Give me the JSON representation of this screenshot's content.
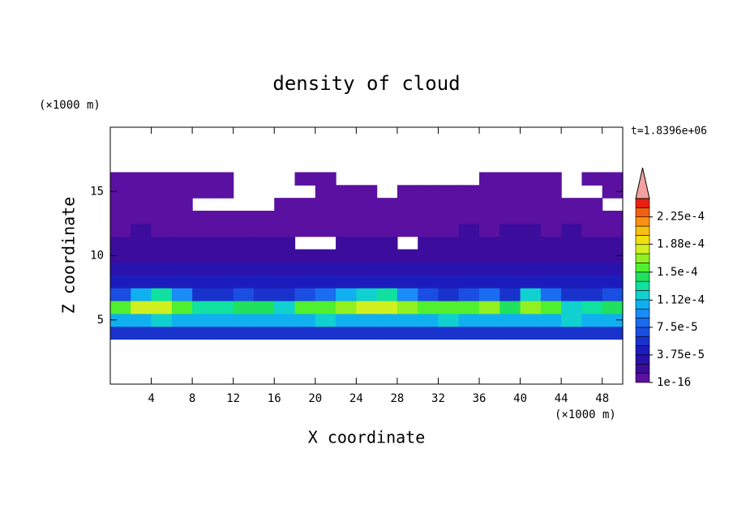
{
  "chart_data": {
    "type": "contour",
    "title": "density of cloud",
    "xlabel": "X coordinate",
    "ylabel": "Z coordinate",
    "xunit": "(×1000 m)",
    "yunit": "(×1000 m)",
    "annotation": "t=1.8396e+06",
    "xlim": [
      0,
      50
    ],
    "ylim": [
      0,
      20
    ],
    "xticks": [
      4,
      8,
      12,
      16,
      20,
      24,
      28,
      32,
      36,
      40,
      44,
      48
    ],
    "yticks": [
      5,
      10,
      15
    ],
    "x": [
      1,
      3,
      5,
      7,
      9,
      11,
      13,
      15,
      17,
      19,
      21,
      23,
      25,
      27,
      29,
      31,
      33,
      35,
      37,
      39,
      41,
      43,
      45,
      47,
      49
    ],
    "y": [
      4,
      5,
      6,
      7,
      8,
      9,
      10,
      11,
      12,
      13,
      14,
      15,
      16
    ],
    "values": [
      [
        5.2e-05,
        5.5e-05,
        5e-05,
        5.4e-05,
        5.1e-05,
        5.6e-05,
        5e-05,
        5.3e-05,
        5.5e-05,
        5e-05,
        5.2e-05,
        5.6e-05,
        5.1e-05,
        5.4e-05,
        5e-05,
        5.3e-05,
        5.5e-05,
        5.2e-05,
        5e-05,
        5.4e-05,
        5.1e-05,
        5.5e-05,
        5.3e-05,
        5e-05,
        5.2e-05
      ],
      [
        0.000105,
        0.00011,
        0.000115,
        0.00011,
        0.0001,
        0.000105,
        0.00011,
        0.0001,
        0.000105,
        0.00011,
        0.000115,
        0.000105,
        0.0001,
        0.00011,
        0.000105,
        0.00011,
        0.000115,
        0.000105,
        0.00011,
        0.0001,
        0.000105,
        0.00011,
        0.000115,
        0.000105,
        0.00011
      ],
      [
        0.00015,
        0.000175,
        0.000185,
        0.00016,
        0.00013,
        0.000125,
        0.000145,
        0.00014,
        0.000115,
        0.000155,
        0.00016,
        0.00017,
        0.000175,
        0.00018,
        0.000165,
        0.00016,
        0.00015,
        0.000155,
        0.000165,
        0.000145,
        0.00017,
        0.00016,
        0.00012,
        0.000135,
        0.00014
      ],
      [
        7e-05,
        0.00011,
        0.000125,
        9e-05,
        6e-05,
        5.5e-05,
        6.5e-05,
        6e-05,
        5e-05,
        7e-05,
        8e-05,
        0.0001,
        0.00012,
        0.000125,
        9e-05,
        7e-05,
        6e-05,
        6.5e-05,
        7.5e-05,
        6e-05,
        0.000115,
        8e-05,
        5e-05,
        6e-05,
        6.5e-05
      ],
      [
        4.2e-05,
        4.5e-05,
        4e-05,
        3.8e-05,
        4.3e-05,
        4e-05,
        4.4e-05,
        3.9e-05,
        4.1e-05,
        4.5e-05,
        4e-05,
        3.8e-05,
        4.2e-05,
        4.4e-05,
        4e-05,
        3.9e-05,
        4.3e-05,
        4.1e-05,
        4e-05,
        4.5e-05,
        4.2e-05,
        3.8e-05,
        4e-05,
        4.3e-05,
        4.1e-05
      ],
      [
        2.8e-05,
        3e-05,
        2.6e-05,
        2.9e-05,
        2.7e-05,
        3.1e-05,
        2.6e-05,
        2.8e-05,
        3e-05,
        2.7e-05,
        2.9e-05,
        2.6e-05,
        2.8e-05,
        3.1e-05,
        2.7e-05,
        2.9e-05,
        2.6e-05,
        2.8e-05,
        3e-05,
        2.7e-05,
        2.9e-05,
        2.6e-05,
        2.8e-05,
        3e-05,
        2.7e-05
      ],
      [
        2e-05,
        2.2e-05,
        1.9e-05,
        2.1e-05,
        1.8e-05,
        2e-05,
        2.3e-05,
        1.9e-05,
        2.1e-05,
        1.8e-05,
        2e-05,
        2.2e-05,
        1.9e-05,
        2.1e-05,
        2e-05,
        1.8e-05,
        2.2e-05,
        2e-05,
        1.9e-05,
        2.1e-05,
        2e-05,
        2.3e-05,
        1.9e-05,
        2.1e-05,
        2e-05
      ],
      [
        1.4e-05,
        1.5e-05,
        1.3e-05,
        1.4e-05,
        1.6e-05,
        1.3e-05,
        1.4e-05,
        1.5e-05,
        1.3e-05,
        null,
        null,
        1.4e-05,
        1.5e-05,
        1.3e-05,
        null,
        1.4e-05,
        1.3e-05,
        1.5e-05,
        1.4e-05,
        1.3e-05,
        1.4e-05,
        1.6e-05,
        1.4e-05,
        1.3e-05,
        1.5e-05
      ],
      [
        8e-06,
        1.3e-05,
        6e-06,
        9e-06,
        7e-06,
        1e-05,
        6e-06,
        8e-06,
        7e-06,
        5e-06,
        6e-06,
        9e-06,
        7e-06,
        6e-06,
        5e-06,
        8e-06,
        1e-05,
        1.3e-05,
        9e-06,
        1.3e-05,
        1.4e-05,
        8e-06,
        1.3e-05,
        9e-06,
        8e-06
      ],
      [
        3e-06,
        4e-06,
        3e-06,
        2e-06,
        3e-06,
        4e-06,
        3e-06,
        3e-06,
        2e-06,
        3e-06,
        4e-06,
        3e-06,
        2e-06,
        3e-06,
        3e-06,
        4e-06,
        3e-06,
        2e-06,
        3e-06,
        4e-06,
        3e-06,
        3e-06,
        2e-06,
        3e-06,
        4e-06
      ],
      [
        2e-06,
        2e-06,
        2e-06,
        2e-06,
        null,
        null,
        null,
        null,
        2e-06,
        2e-06,
        2e-06,
        2e-06,
        2e-06,
        2e-06,
        2e-06,
        2e-06,
        2e-06,
        2e-06,
        2e-06,
        2e-06,
        2e-06,
        2e-06,
        2e-06,
        2e-06,
        null
      ],
      [
        2e-06,
        2e-06,
        2e-06,
        2e-06,
        2e-06,
        2e-06,
        null,
        null,
        null,
        null,
        2e-06,
        2e-06,
        2e-06,
        null,
        2e-06,
        2e-06,
        2e-06,
        2e-06,
        2e-06,
        2e-06,
        2e-06,
        2e-06,
        null,
        null,
        2e-06
      ],
      [
        2e-06,
        2e-06,
        2e-06,
        2e-06,
        2e-06,
        2e-06,
        null,
        null,
        null,
        2e-06,
        2e-06,
        null,
        null,
        null,
        null,
        null,
        null,
        null,
        2e-06,
        2e-06,
        2e-06,
        2e-06,
        null,
        2e-06,
        2e-06
      ]
    ],
    "levels": [
      1e-16,
      1.25e-05,
      2.5e-05,
      3.75e-05,
      5e-05,
      6.25e-05,
      7.5e-05,
      8.75e-05,
      0.0001,
      0.0001125,
      0.000125,
      0.0001375,
      0.00015,
      0.0001625,
      0.000175,
      0.0001875,
      0.0002,
      0.0002125,
      0.000225,
      0.0002375
    ],
    "colors": [
      "#5a10a0",
      "#3c0c9c",
      "#2a12ac",
      "#1c1cbc",
      "#1a32cc",
      "#1a4ee2",
      "#1a6cf0",
      "#1a8cf6",
      "#10b0f0",
      "#10d0d0",
      "#10e0a0",
      "#20e060",
      "#50f030",
      "#90f020",
      "#d0f020",
      "#f0e010",
      "#f8c010",
      "#f89010",
      "#f06010",
      "#e82010"
    ],
    "extend_color": "#f4a0a0",
    "colorbar_lim": [
      1e-16,
      0.00025
    ],
    "colorbar_ticks": [
      {
        "value": 1e-16,
        "label": "1e-16"
      },
      {
        "value": 3.75e-05,
        "label": "3.75e-5"
      },
      {
        "value": 7.5e-05,
        "label": "7.5e-5"
      },
      {
        "value": 0.000112,
        "label": "1.12e-4"
      },
      {
        "value": 0.00015,
        "label": "1.5e-4"
      },
      {
        "value": 0.000188,
        "label": "1.88e-4"
      },
      {
        "value": 0.000225,
        "label": "2.25e-4"
      }
    ]
  }
}
